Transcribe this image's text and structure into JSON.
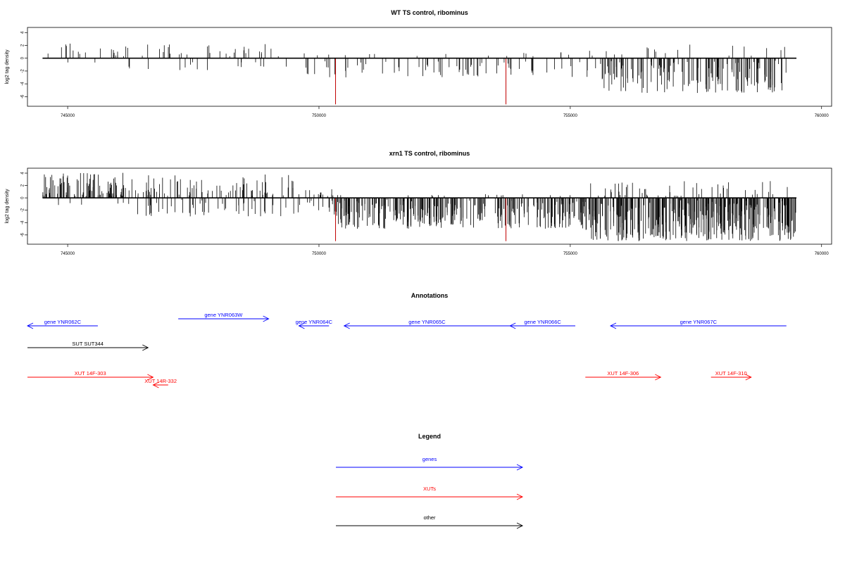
{
  "chart_data": [
    {
      "type": "bar",
      "title": "WT TS control, ribominus",
      "ylabel": "log2 tag density",
      "xlim": [
        744200,
        760200
      ],
      "ylim": [
        -7.5,
        4.8
      ],
      "x_ticks": [
        745000,
        750000,
        755000,
        760000
      ],
      "y_ticks": [
        4,
        2,
        0,
        -2,
        -4,
        -6
      ],
      "baseline_range": [
        744500,
        759500
      ],
      "grid": false,
      "highlight_positions": [
        750330,
        753720
      ],
      "highlight_values": [
        -7.2,
        -7.2
      ],
      "highlight_color": "#c00000",
      "regions": [
        {
          "start": 744600,
          "end": 746200,
          "n": 22,
          "pos_max": 2.5,
          "neg_min": -0.8,
          "neg_frac": 0.15
        },
        {
          "start": 746200,
          "end": 749500,
          "n": 45,
          "pos_max": 2.2,
          "neg_min": -2.0,
          "neg_frac": 0.4
        },
        {
          "start": 749500,
          "end": 750200,
          "n": 10,
          "pos_max": 1.0,
          "neg_min": -2.6,
          "neg_frac": 0.7
        },
        {
          "start": 750200,
          "end": 753000,
          "n": 40,
          "pos_max": 0.8,
          "neg_min": -3.0,
          "neg_frac": 0.8
        },
        {
          "start": 753000,
          "end": 755600,
          "n": 40,
          "pos_max": 1.2,
          "neg_min": -3.0,
          "neg_frac": 0.8
        },
        {
          "start": 755600,
          "end": 759300,
          "n": 170,
          "pos_max": 2.2,
          "neg_min": -5.5,
          "neg_frac": 0.88
        }
      ]
    },
    {
      "type": "bar",
      "title": "xrn1 TS control, ribominus",
      "ylabel": "log2 tag density",
      "xlim": [
        744200,
        760200
      ],
      "ylim": [
        -7.5,
        4.8
      ],
      "x_ticks": [
        745000,
        750000,
        755000,
        760000
      ],
      "y_ticks": [
        4,
        2,
        0,
        -2,
        -4,
        -6
      ],
      "baseline_range": [
        744500,
        759500
      ],
      "grid": false,
      "highlight_positions": [
        750330,
        753720
      ],
      "highlight_values": [
        -7.0,
        -7.0
      ],
      "highlight_color": "#c00000",
      "regions": [
        {
          "start": 744500,
          "end": 746200,
          "n": 95,
          "pos_max": 4.2,
          "neg_min": -1.2,
          "neg_frac": 0.05
        },
        {
          "start": 746200,
          "end": 749500,
          "n": 130,
          "pos_max": 3.8,
          "neg_min": -3.0,
          "neg_frac": 0.4
        },
        {
          "start": 749500,
          "end": 750300,
          "n": 25,
          "pos_max": 1.5,
          "neg_min": -2.5,
          "neg_frac": 0.5
        },
        {
          "start": 750300,
          "end": 753000,
          "n": 170,
          "pos_max": 0.5,
          "neg_min": -5.0,
          "neg_frac": 0.97
        },
        {
          "start": 753000,
          "end": 755300,
          "n": 130,
          "pos_max": 0.6,
          "neg_min": -5.0,
          "neg_frac": 0.96
        },
        {
          "start": 755300,
          "end": 759500,
          "n": 400,
          "pos_max": 2.8,
          "neg_min": -7.0,
          "neg_frac": 0.88
        }
      ]
    }
  ],
  "annotations": {
    "title": "Annotations",
    "items": [
      {
        "label": "gene YNR062C",
        "start": 744200,
        "end": 745600,
        "dir": "left",
        "kind": "gene",
        "row": 1
      },
      {
        "label": "gene YNR063W",
        "start": 747200,
        "end": 749000,
        "dir": "right",
        "kind": "gene",
        "row": 0
      },
      {
        "label": "gene YNR064C",
        "start": 749600,
        "end": 750200,
        "dir": "left",
        "kind": "gene",
        "row": 1
      },
      {
        "label": "gene YNR065C",
        "start": 750500,
        "end": 753800,
        "dir": "left",
        "kind": "gene",
        "row": 1
      },
      {
        "label": "gene YNR066C",
        "start": 753800,
        "end": 755100,
        "dir": "left",
        "kind": "gene",
        "row": 1
      },
      {
        "label": "gene YNR067C",
        "start": 755800,
        "end": 759300,
        "dir": "left",
        "kind": "gene",
        "row": 1
      },
      {
        "label": "SUT SUT344",
        "start": 744200,
        "end": 746600,
        "dir": "right",
        "kind": "other",
        "row": 2
      },
      {
        "label": "XUT 14F-303",
        "start": 744200,
        "end": 746700,
        "dir": "right",
        "kind": "xut",
        "row": 3
      },
      {
        "label": "XUT 14R-332",
        "start": 746700,
        "end": 747000,
        "dir": "left",
        "kind": "xut",
        "row": 4
      },
      {
        "label": "XUT 14F-306",
        "start": 755300,
        "end": 756800,
        "dir": "right",
        "kind": "xut",
        "row": 3
      },
      {
        "label": "XUT 14F-310",
        "start": 757800,
        "end": 758600,
        "dir": "right",
        "kind": "xut",
        "row": 3
      }
    ]
  },
  "legend": {
    "title": "Legend",
    "items": [
      {
        "label": "genes",
        "kind": "gene"
      },
      {
        "label": "XUTs",
        "kind": "xut"
      },
      {
        "label": "other",
        "kind": "other"
      }
    ]
  },
  "colors": {
    "gene": "#0000ff",
    "xut": "#ff0000",
    "other": "#000000"
  }
}
